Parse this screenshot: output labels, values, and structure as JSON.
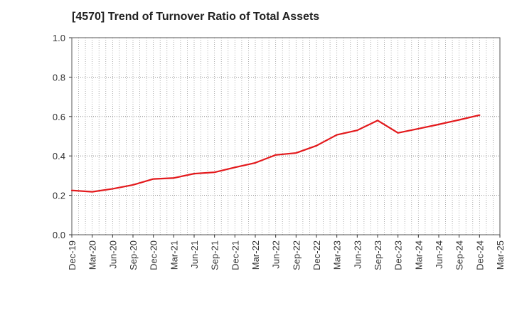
{
  "chart_data": {
    "type": "line",
    "title": "[4570]  Trend of Turnover Ratio of Total Assets",
    "xlabel": "",
    "ylabel": "",
    "ylim": [
      0.0,
      1.0
    ],
    "yticks": [
      "0.0",
      "0.2",
      "0.4",
      "0.6",
      "0.8",
      "1.0"
    ],
    "xtick_labels": [
      "Dec-19",
      "Mar-20",
      "Jun-20",
      "Sep-20",
      "Dec-20",
      "Mar-21",
      "Jun-21",
      "Sep-21",
      "Dec-21",
      "Mar-22",
      "Jun-22",
      "Sep-22",
      "Dec-22",
      "Mar-23",
      "Jun-23",
      "Sep-23",
      "Dec-23",
      "Mar-24",
      "Jun-24",
      "Sep-24",
      "Dec-24",
      "Mar-25"
    ],
    "grid": true,
    "line_color": "#e3191c",
    "series": [
      {
        "x": [
          "Dec-19",
          "Mar-20",
          "Jun-20",
          "Sep-20",
          "Dec-20",
          "Mar-21",
          "Jun-21",
          "Sep-21",
          "Dec-21",
          "Mar-22",
          "Jun-22",
          "Sep-22",
          "Dec-22",
          "Mar-23",
          "Jun-23",
          "Sep-23",
          "Dec-23",
          "Mar-24",
          "Jun-24",
          "Sep-24",
          "Dec-24"
        ],
        "values": [
          0.225,
          0.218,
          0.233,
          0.253,
          0.283,
          0.288,
          0.31,
          0.317,
          0.342,
          0.365,
          0.405,
          0.415,
          0.452,
          0.507,
          0.53,
          0.58,
          0.517,
          0.538,
          0.56,
          0.583,
          0.607
        ]
      }
    ]
  }
}
